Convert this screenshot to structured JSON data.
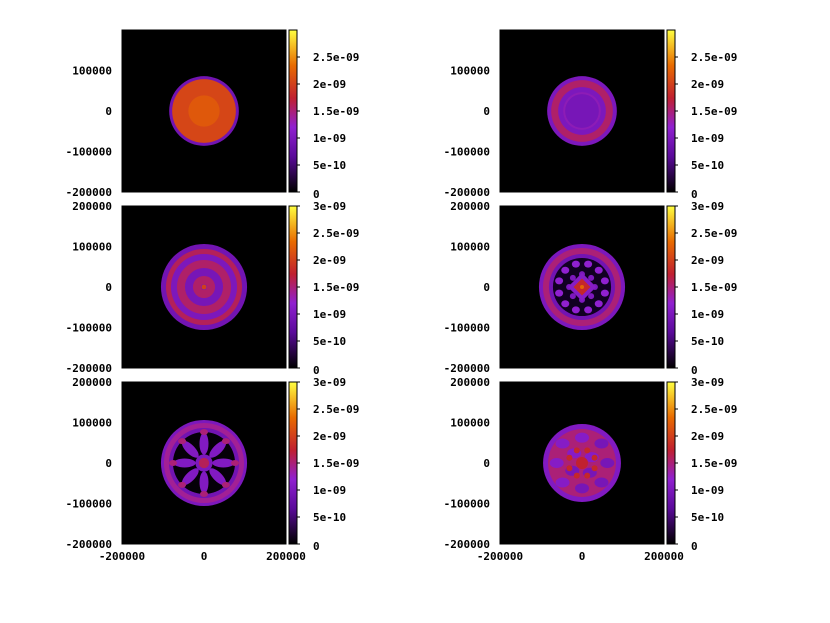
{
  "chart_data": [
    {
      "type": "heatmap",
      "title": "",
      "xlabel": "",
      "ylabel": "",
      "colormap": "gnuplot pm3d default (black-purple-red-orange-yellow)",
      "y_ticks": [
        "100000",
        "0",
        "-100000",
        "-200000"
      ],
      "x_ticks": [],
      "colorbar_ticks": [
        "2.5e-09",
        "2e-09",
        "1.5e-09",
        "1e-09",
        "5e-10",
        "0"
      ],
      "pattern": "uniform disk, orange interior with thin purple rim",
      "radius": 85000,
      "center_value": 2.2e-09
    },
    {
      "type": "heatmap",
      "title": "",
      "xlabel": "",
      "ylabel": "",
      "colormap": "gnuplot pm3d default (black-purple-red-orange-yellow)",
      "y_ticks": [
        "100000",
        "0",
        "-100000",
        "-200000"
      ],
      "x_ticks": [],
      "colorbar_ticks": [
        "2.5e-09",
        "2e-09",
        "1.5e-09",
        "1e-09",
        "5e-10",
        "0"
      ],
      "pattern": "purple disk with outer red ring",
      "radius": 85000,
      "center_value": 1e-09
    },
    {
      "type": "heatmap",
      "title": "",
      "xlabel": "",
      "ylabel": "",
      "colormap": "gnuplot pm3d default (black-purple-red-orange-yellow)",
      "y_ticks": [
        "200000",
        "100000",
        "0",
        "-100000",
        "-200000"
      ],
      "x_ticks": [],
      "colorbar_ticks": [
        "3e-09",
        "2.5e-09",
        "2e-09",
        "1.5e-09",
        "1e-09",
        "5e-10",
        "0"
      ],
      "pattern": "concentric red and purple rings",
      "radius": 105000,
      "center_value": 1.5e-09
    },
    {
      "type": "heatmap",
      "title": "",
      "xlabel": "",
      "ylabel": "",
      "colormap": "gnuplot pm3d default (black-purple-red-orange-yellow)",
      "y_ticks": [
        "200000",
        "100000",
        "0",
        "-100000",
        "-200000"
      ],
      "x_ticks": [],
      "colorbar_ticks": [
        "3e-09",
        "2.5e-09",
        "2e-09",
        "1.5e-09",
        "1e-09",
        "5e-10",
        "0"
      ],
      "pattern": "outer ring with inner blob ring and central diamond pattern",
      "radius": 105000,
      "center_value": 1.8e-09
    },
    {
      "type": "heatmap",
      "title": "",
      "xlabel": "",
      "ylabel": "",
      "colormap": "gnuplot pm3d default (black-purple-red-orange-yellow)",
      "y_ticks": [
        "200000",
        "100000",
        "0",
        "-100000",
        "-200000"
      ],
      "x_ticks": [
        "-200000",
        "0",
        "200000"
      ],
      "colorbar_ticks": [
        "3e-09",
        "2.5e-09",
        "2e-09",
        "1.5e-09",
        "1e-09",
        "5e-10",
        "0"
      ],
      "pattern": "ring with spoke structure and central hub",
      "radius": 105000,
      "center_value": 1.2e-09
    },
    {
      "type": "heatmap",
      "title": "",
      "xlabel": "",
      "ylabel": "",
      "colormap": "gnuplot pm3d default (black-purple-red-orange-yellow)",
      "y_ticks": [
        "200000",
        "100000",
        "0",
        "-100000",
        "-200000"
      ],
      "x_ticks": [
        "-200000",
        "0",
        "200000"
      ],
      "colorbar_ticks": [
        "3e-09",
        "2.5e-09",
        "2e-09",
        "1.5e-09",
        "1e-09",
        "5e-10",
        "0"
      ],
      "pattern": "turbulent disk with mixed red and purple patches",
      "radius": 95000,
      "center_value": 1.6e-09
    }
  ]
}
